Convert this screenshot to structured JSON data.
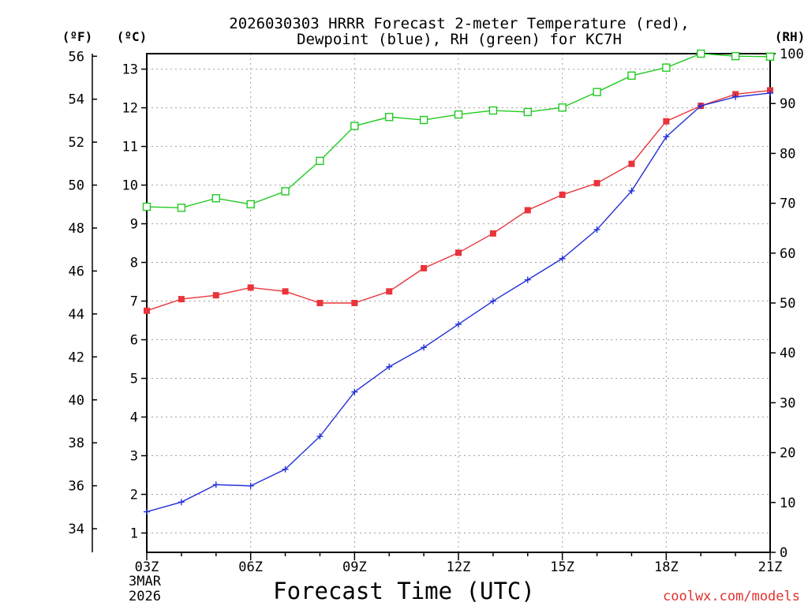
{
  "chart_data": {
    "type": "line",
    "title_line1": "2026030303 HRRR Forecast 2-meter Temperature (red),",
    "title_line2": "Dewpoint (blue), RH (green) for KC7H",
    "xlabel": "Forecast Time (UTC)",
    "left_outer_axis_label": "(ºF)",
    "left_inner_axis_label": "(ºC)",
    "right_axis_label": "(RH)",
    "date_label_line1": "3MAR",
    "date_label_line2": "2026",
    "watermark": "coolwx.com/models",
    "x_ticks": [
      "03Z",
      "06Z",
      "09Z",
      "12Z",
      "15Z",
      "18Z",
      "21Z"
    ],
    "x_hours": [
      3,
      4,
      5,
      6,
      7,
      8,
      9,
      10,
      11,
      12,
      13,
      14,
      15,
      16,
      17,
      18,
      19,
      20,
      21
    ],
    "xlim": [
      3,
      21
    ],
    "ylim_c": [
      0.5,
      13.4
    ],
    "yticks_c": [
      1,
      2,
      3,
      4,
      5,
      6,
      7,
      8,
      9,
      10,
      11,
      12,
      13
    ],
    "yticks_f": [
      34,
      36,
      38,
      40,
      42,
      44,
      46,
      48,
      50,
      52,
      54,
      56
    ],
    "ylim_rh": [
      0,
      100
    ],
    "yticks_rh": [
      0,
      10,
      20,
      30,
      40,
      50,
      60,
      70,
      80,
      90,
      100
    ],
    "grid": true,
    "colors": {
      "temperature": "#e8343a",
      "dewpoint": "#2432d8",
      "rh": "#22c922",
      "grid": "#a0a0a0",
      "watermark": "#e03030"
    },
    "series": [
      {
        "name": "Temperature (°C)",
        "marker": "filled-square",
        "axis": "celsius",
        "values": [
          6.75,
          7.05,
          7.15,
          7.35,
          7.25,
          6.95,
          6.95,
          7.25,
          7.85,
          8.25,
          8.75,
          9.35,
          9.75,
          10.05,
          10.55,
          11.65,
          12.05,
          12.35,
          12.45
        ]
      },
      {
        "name": "Dewpoint (°C)",
        "marker": "plus",
        "axis": "celsius",
        "values": [
          1.55,
          1.8,
          2.25,
          2.22,
          2.65,
          3.5,
          4.65,
          5.3,
          5.8,
          6.4,
          7.0,
          7.55,
          8.1,
          8.85,
          9.85,
          11.25,
          12.05,
          12.28,
          12.38
        ]
      },
      {
        "name": "RH (%)",
        "marker": "open-square",
        "axis": "rh",
        "values": [
          69.3,
          69.1,
          71.0,
          69.8,
          72.4,
          78.5,
          85.5,
          87.3,
          86.7,
          87.8,
          88.6,
          88.3,
          89.2,
          92.3,
          95.6,
          97.2,
          100,
          99.5,
          99.4
        ]
      }
    ]
  }
}
